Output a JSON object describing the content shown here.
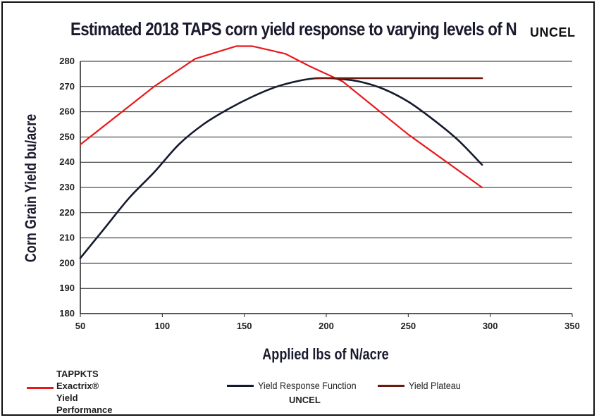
{
  "chart_data": {
    "type": "line",
    "title": "Estimated 2018 TAPS corn yield response to varying levels of N",
    "title_tag": "UNCEL",
    "xlabel": "Applied lbs of N/acre",
    "ylabel": "Corn Grain Yield bu/acre",
    "xlim": [
      50,
      350
    ],
    "ylim": [
      180,
      280
    ],
    "xticks": [
      50,
      100,
      150,
      200,
      250,
      300,
      350
    ],
    "yticks": [
      180,
      190,
      200,
      210,
      220,
      230,
      240,
      250,
      260,
      270,
      280
    ],
    "grid": "horizontal",
    "series": [
      {
        "name": "Exactrix® Yield Performance",
        "color": "#e8191c",
        "x": [
          50,
          95,
          120,
          145,
          155,
          175,
          190,
          210,
          250,
          295
        ],
        "y": [
          247,
          270,
          281,
          286,
          286,
          283,
          278,
          272,
          251,
          230
        ]
      },
      {
        "name": "Yield Response Function",
        "color": "#141a2e",
        "x": [
          50,
          65,
          80,
          95,
          110,
          125,
          140,
          155,
          170,
          185,
          195,
          205,
          220,
          235,
          250,
          265,
          280,
          295
        ],
        "y": [
          202,
          214,
          226,
          236,
          247,
          255,
          261,
          266,
          270,
          272.5,
          273.3,
          273.2,
          272,
          269,
          264,
          257,
          249,
          239
        ]
      },
      {
        "name": "Yield Plateau",
        "color": "#6b1a10",
        "x": [
          193,
          295
        ],
        "y": [
          273.3,
          273.3
        ]
      }
    ]
  },
  "legend": {
    "red_header": "TAPPKTS",
    "red_line1": "Exactrix®",
    "red_line2": "Yield Performance",
    "black_label": "Yield Response Function",
    "black_note": "UNCEL",
    "brown_label": "Yield Plateau"
  }
}
